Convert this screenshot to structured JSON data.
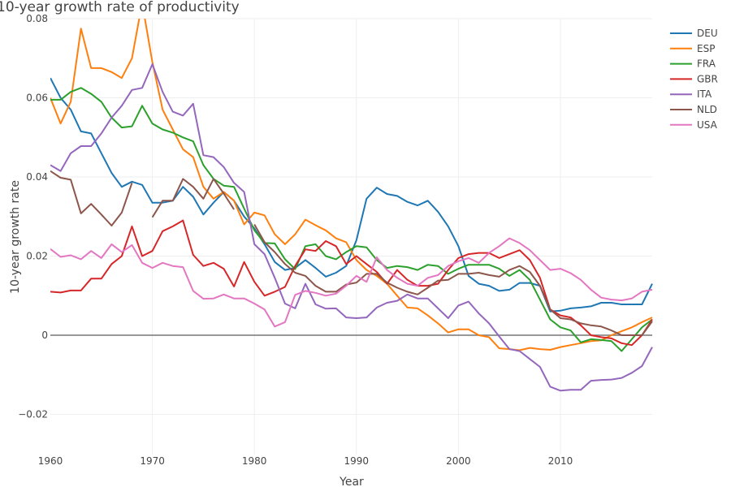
{
  "chart_data": {
    "type": "line",
    "title": "10-year growth rate of productivity",
    "xlabel": "Year",
    "ylabel": "10-year growth rate",
    "xlim": [
      1960,
      2019
    ],
    "ylim": [
      -0.03,
      0.08
    ],
    "xticks": [
      "1960",
      "1970",
      "1980",
      "1990",
      "2000",
      "2010"
    ],
    "xtick_values": [
      1960,
      1970,
      1980,
      1990,
      2000,
      2010
    ],
    "yticks": [
      "−0.02",
      "0",
      "0.02",
      "0.04",
      "0.06",
      "0.08"
    ],
    "ytick_values": [
      -0.02,
      0,
      0.02,
      0.04,
      0.06,
      0.08
    ],
    "grid": true,
    "legend": "top-right",
    "x_start": 1960,
    "series": [
      {
        "name": "DEU",
        "color": "#1f77b4",
        "values": [
          0.065,
          0.06,
          0.057,
          0.0515,
          0.051,
          0.046,
          0.041,
          0.0375,
          0.0388,
          0.038,
          0.0335,
          0.0335,
          0.034,
          0.0375,
          0.035,
          0.0305,
          0.0335,
          0.0362,
          0.034,
          0.03,
          0.027,
          0.023,
          0.0185,
          0.0165,
          0.017,
          0.019,
          0.017,
          0.0148,
          0.0158,
          0.0175,
          0.024,
          0.0345,
          0.0373,
          0.0357,
          0.0352,
          0.0337,
          0.0328,
          0.034,
          0.0312,
          0.0275,
          0.0225,
          0.015,
          0.013,
          0.0125,
          0.0112,
          0.0115,
          0.0132,
          0.0132,
          0.0125,
          0.006,
          0.0062,
          0.0068,
          0.007,
          0.0073,
          0.0082,
          0.0082,
          0.0078,
          0.0078,
          0.0078,
          0.013
        ]
      },
      {
        "name": "ESP",
        "color": "#ff7f0e",
        "values": [
          0.06,
          0.0535,
          0.059,
          0.0775,
          0.0675,
          0.0675,
          0.0665,
          0.065,
          0.07,
          0.084,
          0.069,
          0.057,
          0.052,
          0.047,
          0.045,
          0.0375,
          0.0345,
          0.0362,
          0.034,
          0.028,
          0.031,
          0.0303,
          0.0255,
          0.023,
          0.0255,
          0.0292,
          0.0278,
          0.0265,
          0.0245,
          0.0235,
          0.019,
          0.0165,
          0.015,
          0.013,
          0.01,
          0.007,
          0.0068,
          0.005,
          0.003,
          0.0007,
          0.0015,
          0.0015,
          0,
          -0.0005,
          -0.0033,
          -0.0035,
          -0.0038,
          -0.0032,
          -0.0035,
          -0.0037,
          -0.003,
          -0.0025,
          -0.002,
          -0.0015,
          -0.0013,
          0,
          0.001,
          0.002,
          0.0033,
          0.0045
        ]
      },
      {
        "name": "FRA",
        "color": "#2ca02c",
        "values": [
          0.0595,
          0.0595,
          0.0615,
          0.0625,
          0.061,
          0.059,
          0.055,
          0.0525,
          0.0528,
          0.058,
          0.0535,
          0.052,
          0.0512,
          0.05,
          0.049,
          0.043,
          0.0395,
          0.0378,
          0.0375,
          0.032,
          0.0265,
          0.0233,
          0.0232,
          0.0192,
          0.0167,
          0.0225,
          0.023,
          0.02,
          0.0192,
          0.021,
          0.0225,
          0.0222,
          0.019,
          0.017,
          0.0175,
          0.0172,
          0.0165,
          0.0178,
          0.0175,
          0.0155,
          0.0168,
          0.0178,
          0.0178,
          0.0178,
          0.0168,
          0.015,
          0.0165,
          0.014,
          0.009,
          0.004,
          0.002,
          0.0012,
          -0.0018,
          -0.001,
          -0.0012,
          -0.0015,
          -0.004,
          -0.001,
          0.002,
          0.004
        ]
      },
      {
        "name": "GBR",
        "color": "#d62728",
        "values": [
          0.011,
          0.0108,
          0.0113,
          0.0113,
          0.0143,
          0.0143,
          0.018,
          0.02,
          0.0275,
          0.02,
          0.0213,
          0.0263,
          0.0275,
          0.029,
          0.0203,
          0.0175,
          0.0183,
          0.0168,
          0.0123,
          0.0185,
          0.0135,
          0.01,
          0.011,
          0.0122,
          0.0175,
          0.0217,
          0.0213,
          0.0238,
          0.0225,
          0.018,
          0.02,
          0.018,
          0.016,
          0.013,
          0.0165,
          0.014,
          0.0125,
          0.0125,
          0.013,
          0.0165,
          0.0195,
          0.0205,
          0.0208,
          0.0208,
          0.0195,
          0.0205,
          0.0215,
          0.019,
          0.0145,
          0.0065,
          0.005,
          0.0045,
          0.0025,
          0,
          -0.0005,
          -0.0008,
          -0.002,
          -0.0025,
          0,
          0.004
        ]
      },
      {
        "name": "ITA",
        "color": "#9467bd",
        "values": [
          0.043,
          0.0415,
          0.046,
          0.0478,
          0.0478,
          0.051,
          0.055,
          0.058,
          0.062,
          0.0625,
          0.0685,
          0.0615,
          0.0565,
          0.0555,
          0.0585,
          0.0455,
          0.045,
          0.0425,
          0.0385,
          0.0362,
          0.023,
          0.0205,
          0.0145,
          0.008,
          0.0068,
          0.013,
          0.0078,
          0.0067,
          0.0068,
          0.0045,
          0.0043,
          0.0045,
          0.007,
          0.0082,
          0.0087,
          0.0103,
          0.0093,
          0.0093,
          0.0068,
          0.0043,
          0.0075,
          0.0085,
          0.0055,
          0.003,
          -0.0003,
          -0.0035,
          -0.004,
          -0.006,
          -0.008,
          -0.013,
          -0.014,
          -0.0138,
          -0.0138,
          -0.0115,
          -0.0113,
          -0.0112,
          -0.0108,
          -0.0095,
          -0.0078,
          -0.003
        ]
      },
      {
        "name": "NLD",
        "color": "#8c564b",
        "values": [
          0.0415,
          0.0398,
          0.0393,
          0.0308,
          0.0332,
          0.0305,
          0.0277,
          0.031,
          0.0385,
          null,
          0.0298,
          0.034,
          0.034,
          0.0395,
          0.0375,
          0.0345,
          0.0395,
          0.0358,
          0.0318,
          null,
          0.028,
          0.0235,
          0.021,
          0.018,
          0.0158,
          0.015,
          0.0125,
          0.011,
          0.011,
          0.0128,
          0.0133,
          0.0155,
          0.0155,
          0.0133,
          0.012,
          0.011,
          0.0103,
          0.012,
          0.0138,
          0.014,
          0.0155,
          0.0155,
          0.0158,
          0.0152,
          0.0148,
          0.0165,
          0.0175,
          0.016,
          0.0125,
          0.0065,
          0.0043,
          0.004,
          0.003,
          0.0025,
          0.0022,
          0.0012,
          0,
          0,
          0,
          0.0035
        ]
      },
      {
        "name": "USA",
        "color": "#e377c2",
        "values": [
          0.0218,
          0.0198,
          0.0202,
          0.0192,
          0.0213,
          0.0195,
          0.023,
          0.021,
          0.0228,
          0.0183,
          0.017,
          0.0183,
          0.0175,
          0.0172,
          0.0112,
          0.0092,
          0.0093,
          0.0103,
          0.0093,
          0.0093,
          0.008,
          0.0065,
          0.0022,
          0.0033,
          0.0102,
          0.0112,
          0.0107,
          0.01,
          0.0105,
          0.0125,
          0.015,
          0.0135,
          0.0197,
          0.0165,
          0.0145,
          0.013,
          0.0125,
          0.0145,
          0.0152,
          0.0175,
          0.0187,
          0.0195,
          0.0183,
          0.0208,
          0.0225,
          0.0245,
          0.0233,
          0.0215,
          0.019,
          0.0165,
          0.0168,
          0.0157,
          0.014,
          0.0115,
          0.0095,
          0.009,
          0.0088,
          0.0093,
          0.011,
          0.0115
        ]
      }
    ]
  }
}
